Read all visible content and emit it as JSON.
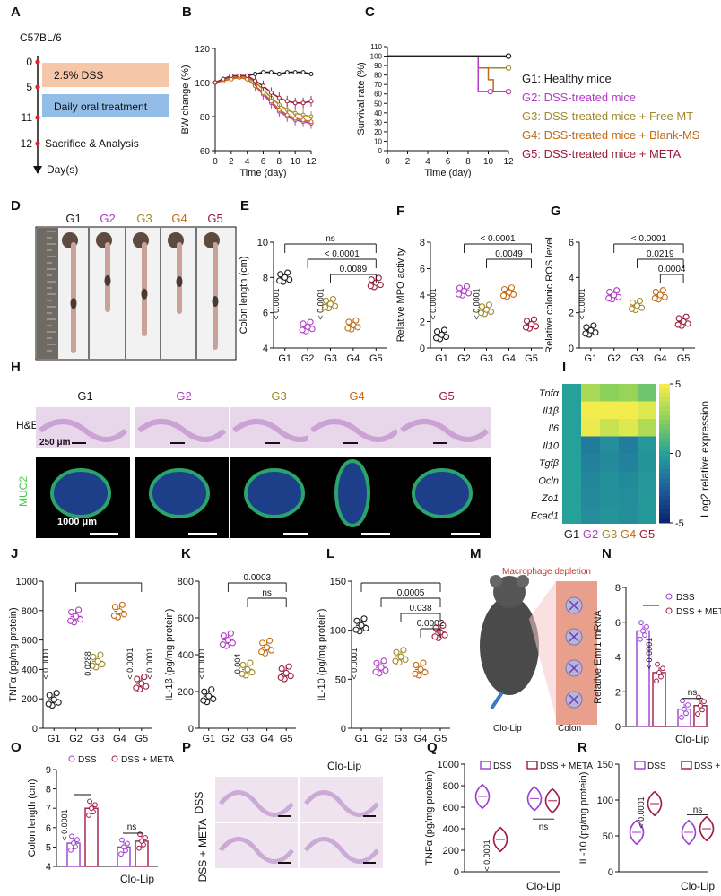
{
  "figure": {
    "panel_letters": [
      "A",
      "B",
      "C",
      "D",
      "E",
      "F",
      "G",
      "H",
      "I",
      "J",
      "K",
      "L",
      "M",
      "N",
      "O",
      "P",
      "Q",
      "R"
    ]
  },
  "colors": {
    "G1": "#1a1a1a",
    "G2": "#b13bc6",
    "G3": "#a08a2e",
    "G4": "#c46a12",
    "G5": "#9b1b3a",
    "dss_bar": "#9b3fd0",
    "meta_bar": "#a11845",
    "timeline_dss": "#f6c6a8",
    "timeline_treat": "#93bde6"
  },
  "panel_A": {
    "strain": "C57BL/6",
    "ticks": [
      "0",
      "5",
      "11",
      "12"
    ],
    "dss_label": "2.5% DSS",
    "treatment_label": "Daily oral treatment",
    "sacrifice_label": "Sacrifice & Analysis",
    "axis_label": "Day(s)"
  },
  "legend_groups": {
    "entries": [
      {
        "key": "G1",
        "label": "G1: Healthy mice"
      },
      {
        "key": "G2",
        "label": "G2: DSS-treated mice"
      },
      {
        "key": "G3",
        "label": "G3: DSS-treated mice + Free MT"
      },
      {
        "key": "G4",
        "label": "G4: DSS-treated mice + Blank-MS"
      },
      {
        "key": "G5",
        "label": "G5: DSS-treated mice + META"
      }
    ]
  },
  "group_labels": [
    "G1",
    "G2",
    "G3",
    "G4",
    "G5"
  ],
  "chart_data": [
    {
      "id": "B",
      "type": "line",
      "xlabel": "Time (day)",
      "ylabel": "BW change (%)",
      "xlim": [
        0,
        12
      ],
      "ylim": [
        60,
        120
      ],
      "xticks": [
        "0",
        "2",
        "4",
        "6",
        "8",
        "10",
        "12"
      ],
      "yticks": [
        "60",
        "80",
        "100",
        "120"
      ],
      "x": [
        0,
        1,
        2,
        3,
        4,
        5,
        6,
        7,
        8,
        9,
        10,
        11,
        12
      ],
      "series": [
        {
          "key": "G1",
          "values": [
            100,
            102,
            103,
            104,
            104,
            105,
            106,
            106,
            105,
            106,
            106,
            106,
            105
          ]
        },
        {
          "key": "G2",
          "values": [
            100,
            102,
            103,
            103,
            102,
            98,
            93,
            88,
            83,
            80,
            78,
            77,
            76
          ]
        },
        {
          "key": "G3",
          "values": [
            100,
            102,
            103,
            104,
            103,
            100,
            96,
            91,
            87,
            84,
            82,
            81,
            80
          ]
        },
        {
          "key": "G4",
          "values": [
            100,
            101,
            102,
            103,
            102,
            98,
            94,
            89,
            84,
            81,
            79,
            78,
            77
          ]
        },
        {
          "key": "G5",
          "values": [
            100,
            102,
            104,
            104,
            104,
            101,
            98,
            94,
            91,
            89,
            88,
            88,
            89
          ]
        }
      ]
    },
    {
      "id": "C",
      "type": "line",
      "xlabel": "Time (day)",
      "ylabel": "Survival rate (%)",
      "xlim": [
        0,
        12
      ],
      "ylim": [
        0,
        110
      ],
      "xticks": [
        "0",
        "2",
        "4",
        "6",
        "8",
        "10",
        "12"
      ],
      "yticks": [
        "0",
        "10",
        "20",
        "30",
        "40",
        "50",
        "60",
        "70",
        "80",
        "90",
        "100",
        "110"
      ],
      "series": [
        {
          "key": "G1",
          "steps": [
            [
              0,
              100
            ],
            [
              12,
              100
            ]
          ]
        },
        {
          "key": "G2",
          "steps": [
            [
              0,
              100
            ],
            [
              9,
              100
            ],
            [
              9,
              62.5
            ],
            [
              12,
              62.5
            ]
          ]
        },
        {
          "key": "G3",
          "steps": [
            [
              0,
              100
            ],
            [
              9,
              100
            ],
            [
              9,
              87.5
            ],
            [
              12,
              87.5
            ]
          ]
        },
        {
          "key": "G4",
          "steps": [
            [
              0,
              100
            ],
            [
              9,
              100
            ],
            [
              9,
              87.5
            ],
            [
              10,
              87.5
            ],
            [
              10,
              75
            ],
            [
              10.5,
              75
            ],
            [
              10.5,
              62.5
            ],
            [
              12,
              62.5
            ]
          ]
        },
        {
          "key": "G5",
          "steps": [
            [
              0,
              100
            ],
            [
              12,
              100
            ]
          ]
        }
      ]
    },
    {
      "id": "E",
      "type": "scatter",
      "ylabel": "Colon length (cm)",
      "ylim": [
        4,
        10
      ],
      "yticks": [
        "4",
        "6",
        "8",
        "10"
      ],
      "means": [
        8.0,
        5.2,
        6.5,
        5.3,
        7.7
      ],
      "brackets": [
        {
          "from": 0,
          "to": 4,
          "label": "ns"
        },
        {
          "from": 1,
          "to": 4,
          "label": "< 0.0001"
        },
        {
          "from": 2,
          "to": 4,
          "label": "0.0089"
        }
      ],
      "vertical_labels": [
        "< 0.0001",
        "< 0.0001"
      ]
    },
    {
      "id": "F",
      "type": "scatter",
      "ylabel": "Relative MPO activity",
      "ylim": [
        0,
        8
      ],
      "yticks": [
        "0",
        "2",
        "4",
        "6",
        "8"
      ],
      "means": [
        1.0,
        4.3,
        2.9,
        4.2,
        1.8
      ],
      "brackets": [
        {
          "from": 1,
          "to": 4,
          "label": "< 0.0001"
        },
        {
          "from": 2,
          "to": 4,
          "label": "0.0049"
        }
      ],
      "vertical_labels": [
        "< 0.0001",
        "< 0.0001"
      ]
    },
    {
      "id": "G",
      "type": "scatter",
      "ylabel": "Relative colonic ROS level",
      "ylim": [
        0,
        6
      ],
      "yticks": [
        "0",
        "2",
        "4",
        "6"
      ],
      "means": [
        1.0,
        3.0,
        2.4,
        3.0,
        1.5
      ],
      "brackets": [
        {
          "from": 1,
          "to": 4,
          "label": "< 0.0001"
        },
        {
          "from": 2,
          "to": 4,
          "label": "0.0219"
        },
        {
          "from": 3,
          "to": 4,
          "label": "0.0004"
        }
      ],
      "vertical_labels": [
        "< 0.0001"
      ]
    },
    {
      "id": "I",
      "type": "heatmap",
      "legend_title": "Log2 relative expression",
      "rows": [
        "Tnfα",
        "Il1β",
        "Il6",
        "Il10",
        "Tgfβ",
        "Ocln",
        "Zo1",
        "Ecad1"
      ],
      "cols": [
        "G1",
        "G2",
        "G3",
        "G4",
        "G5"
      ],
      "values": [
        [
          0.0,
          3.2,
          2.5,
          2.8,
          1.8
        ],
        [
          0.0,
          6.0,
          5.2,
          5.7,
          4.5
        ],
        [
          0.0,
          4.8,
          4.0,
          4.5,
          3.4
        ],
        [
          0.0,
          -1.5,
          -0.8,
          -1.4,
          -0.4
        ],
        [
          0.0,
          -1.3,
          -0.9,
          -1.2,
          -0.5
        ],
        [
          0.0,
          -1.0,
          -0.6,
          -0.9,
          -0.4
        ],
        [
          0.0,
          -0.9,
          -0.6,
          -0.8,
          -0.3
        ],
        [
          0.0,
          -0.8,
          -0.5,
          -0.7,
          -0.3
        ]
      ],
      "scale": [
        -5,
        5
      ],
      "scale_ticks": [
        "5",
        "0",
        "-5"
      ]
    },
    {
      "id": "J",
      "type": "scatter",
      "ylabel": "TNFα (pg/mg protein)",
      "ylim": [
        0,
        1000
      ],
      "yticks": [
        "0",
        "200",
        "400",
        "600",
        "800",
        "1000"
      ],
      "means": [
        195,
        760,
        455,
        795,
        305
      ],
      "brackets": [
        {
          "from": 1,
          "to": 4,
          "label": ""
        }
      ],
      "vertical_labels": [
        "< 0.0001",
        "0.0288",
        "< 0.0001",
        "< 0.0001"
      ]
    },
    {
      "id": "K",
      "type": "scatter",
      "ylabel": "IL-1β (pg/mg protein)",
      "ylim": [
        0,
        800
      ],
      "yticks": [
        "0",
        "200",
        "400",
        "600",
        "800"
      ],
      "means": [
        175,
        480,
        320,
        440,
        300
      ],
      "brackets": [
        {
          "from": 1,
          "to": 4,
          "label": "0.0003"
        },
        {
          "from": 2,
          "to": 4,
          "label": "ns"
        }
      ],
      "vertical_labels": [
        "< 0.0001",
        "0.004"
      ]
    },
    {
      "id": "L",
      "type": "scatter",
      "ylabel": "IL-10 (pg/mg protein)",
      "ylim": [
        0,
        150
      ],
      "yticks": [
        "0",
        "50",
        "100",
        "150"
      ],
      "means": [
        105,
        62,
        73,
        60,
        98
      ],
      "brackets": [
        {
          "from": 0,
          "to": 4,
          "label": ""
        },
        {
          "from": 1,
          "to": 4,
          "label": "0.0005"
        },
        {
          "from": 2,
          "to": 4,
          "label": "0.038"
        },
        {
          "from": 3,
          "to": 4,
          "label": "0.0002"
        }
      ],
      "vertical_labels": [
        "< 0.0001"
      ]
    },
    {
      "id": "N",
      "type": "bar",
      "ylabel": "Relative Emr1 mRNA",
      "ylim": [
        0,
        8
      ],
      "yticks": [
        "0",
        "2",
        "4",
        "6",
        "8"
      ],
      "legend": [
        "DSS",
        "DSS + META"
      ],
      "group_label": "Clo-Lip",
      "values": [
        [
          5.5,
          3.1
        ],
        [
          1.0,
          1.2
        ]
      ],
      "labels": [
        "< 0.0001",
        "ns"
      ]
    },
    {
      "id": "O",
      "type": "bar",
      "ylabel": "Colon length (cm)",
      "ylim": [
        4,
        9
      ],
      "yticks": [
        "4",
        "5",
        "6",
        "7",
        "8",
        "9"
      ],
      "legend": [
        "DSS",
        "DSS + META"
      ],
      "group_label": "Clo-Lip",
      "values": [
        [
          5.2,
          7.0
        ],
        [
          5.0,
          5.3
        ]
      ],
      "labels": [
        "< 0.0001",
        "ns"
      ]
    },
    {
      "id": "Q",
      "type": "violin",
      "ylabel": "TNFα (pg/mg protein)",
      "ylim": [
        0,
        1000
      ],
      "yticks": [
        "0",
        "200",
        "400",
        "600",
        "800",
        "1000"
      ],
      "legend": [
        "DSS",
        "DSS + META"
      ],
      "group_label": "Clo-Lip",
      "medians": [
        [
          700,
          300
        ],
        [
          680,
          660
        ]
      ],
      "labels": [
        "< 0.0001",
        "ns"
      ]
    },
    {
      "id": "R",
      "type": "violin",
      "ylabel": "IL-10 (pg/mg protein)",
      "ylim": [
        0,
        150
      ],
      "yticks": [
        "0",
        "50",
        "100",
        "150"
      ],
      "legend": [
        "DSS",
        "DSS + META"
      ],
      "group_label": "Clo-Lip",
      "medians": [
        [
          55,
          95
        ],
        [
          55,
          60
        ]
      ],
      "labels": [
        "< 0.0001",
        "ns"
      ]
    }
  ],
  "panel_D": {
    "scale_label": ""
  },
  "panel_H": {
    "row_labels": [
      "H&E",
      "MUC2"
    ],
    "scale_he": "250 μm",
    "scale_muc": "1000 μm"
  },
  "panel_M": {
    "title": "Macrophage depletion",
    "drug": "Clo-Lip",
    "organ": "Colon"
  },
  "panel_P": {
    "header": "Clo-Lip",
    "row_labels": [
      "DSS",
      "DSS + META"
    ]
  }
}
